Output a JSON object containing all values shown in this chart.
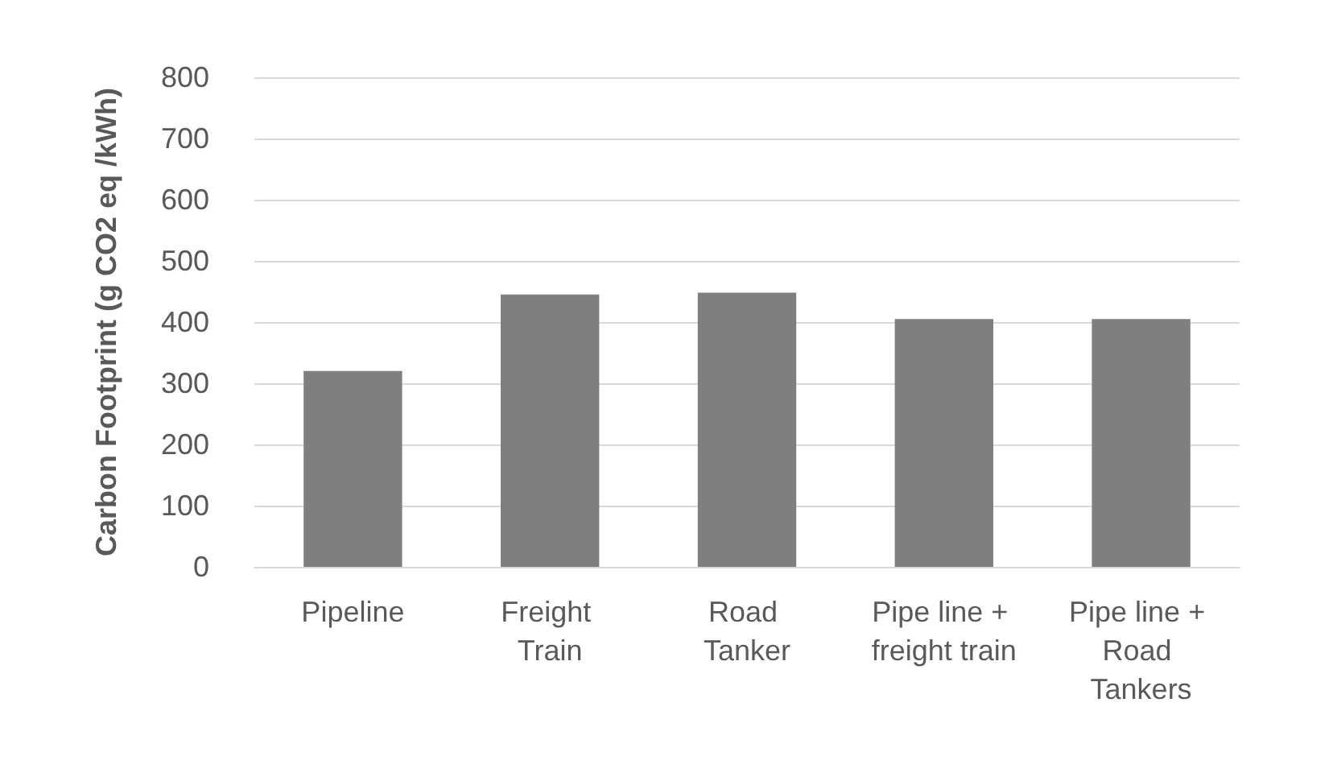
{
  "chart_data": {
    "type": "bar",
    "ylabel": "Carbon Footprint (g CO2 eq /kWh)",
    "categories": [
      "Pipeline",
      "Freight Train",
      "Road Tanker",
      "Pipe line + freight train",
      "Pipe line + Road Tankers"
    ],
    "values": [
      320,
      445,
      448,
      405,
      405
    ],
    "color": "#7f7f7f",
    "ylim": [
      0,
      800
    ],
    "yticks": [
      0,
      100,
      200,
      300,
      400,
      500,
      600,
      700,
      800
    ],
    "grid": "y"
  }
}
